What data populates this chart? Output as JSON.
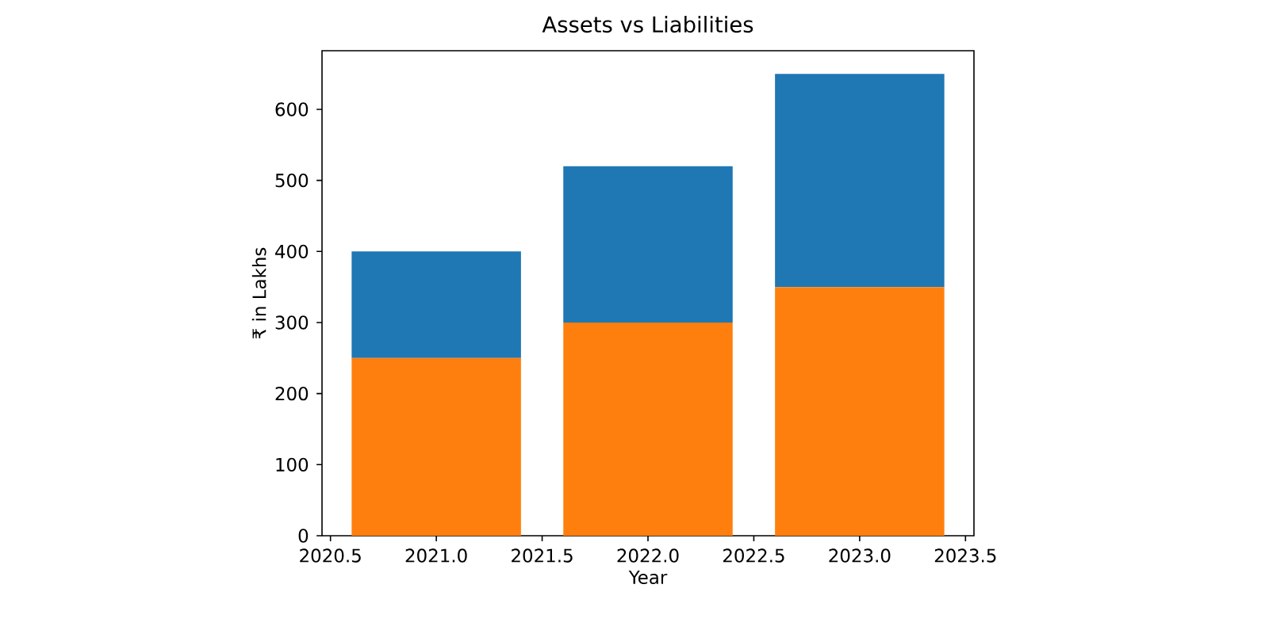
{
  "chart_data": {
    "type": "bar",
    "title": "Assets vs Liabilities",
    "xlabel": "Year",
    "ylabel": "₹ in Lakhs",
    "x": [
      2021,
      2022,
      2023
    ],
    "stacked": true,
    "series": [
      {
        "color": "#ff7f0e",
        "values": [
          250,
          300,
          350
        ]
      },
      {
        "color": "#1f77b4",
        "values": [
          150,
          220,
          300
        ]
      }
    ],
    "xlim": [
      2020.46,
      2023.54
    ],
    "ylim": [
      0,
      682.5
    ],
    "xticks": [
      2020.5,
      {
        "value": 2021,
        "label": "2021.0"
      },
      2021.5,
      {
        "value": 2022,
        "label": "2022.0"
      },
      2022.5,
      {
        "value": 2023,
        "label": "2023.0"
      },
      2023.5
    ],
    "yticks": [
      0,
      100,
      200,
      300,
      400,
      500,
      600
    ]
  }
}
